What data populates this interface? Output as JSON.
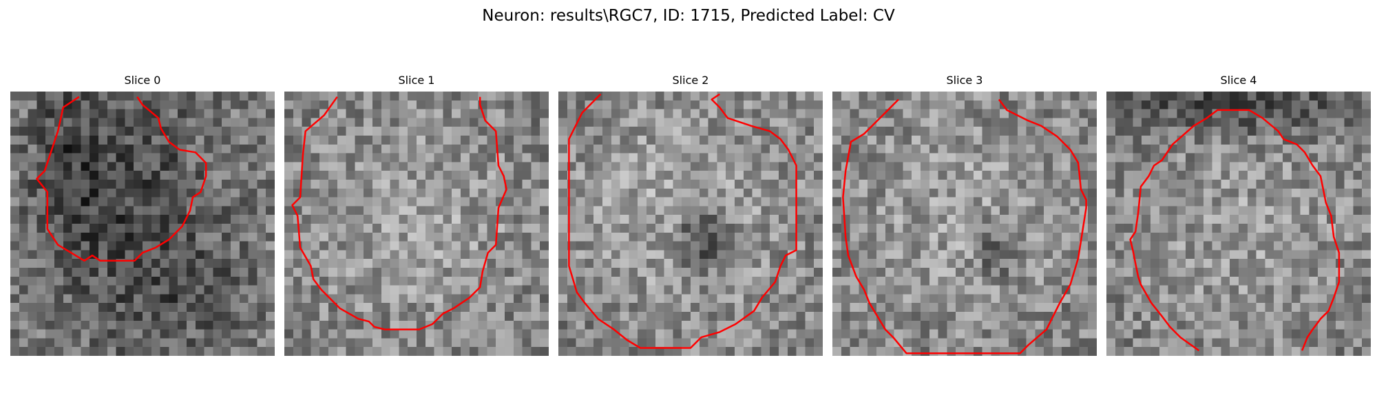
{
  "figure": {
    "title": "Neuron: results\\RGC7, ID: 1715, Predicted Label: CV",
    "contour_color": "#ff0000",
    "grid_size": 30
  },
  "slices": [
    {
      "label": "Slice 0",
      "seed": 11,
      "blobs": [
        [
          0.45,
          0.42,
          0.32,
          0.55,
          -1
        ],
        [
          0.2,
          0.3,
          0.12,
          0.4,
          -0.7
        ],
        [
          0.7,
          0.75,
          0.25,
          0.2,
          -0.5
        ]
      ],
      "contour": [
        [
          0.26,
          0.02
        ],
        [
          0.2,
          0.06
        ],
        [
          0.18,
          0.15
        ],
        [
          0.13,
          0.3
        ],
        [
          0.1,
          0.33
        ],
        [
          0.14,
          0.38
        ],
        [
          0.14,
          0.52
        ],
        [
          0.18,
          0.58
        ],
        [
          0.23,
          0.61
        ],
        [
          0.28,
          0.64
        ],
        [
          0.31,
          0.62
        ],
        [
          0.34,
          0.64
        ],
        [
          0.47,
          0.64
        ],
        [
          0.5,
          0.61
        ],
        [
          0.55,
          0.59
        ],
        [
          0.6,
          0.56
        ],
        [
          0.65,
          0.51
        ],
        [
          0.68,
          0.45
        ],
        [
          0.69,
          0.4
        ],
        [
          0.72,
          0.38
        ],
        [
          0.74,
          0.32
        ],
        [
          0.74,
          0.27
        ],
        [
          0.7,
          0.23
        ],
        [
          0.64,
          0.22
        ],
        [
          0.6,
          0.19
        ],
        [
          0.57,
          0.14
        ],
        [
          0.56,
          0.1
        ],
        [
          0.5,
          0.05
        ],
        [
          0.48,
          0.02
        ]
      ]
    },
    {
      "label": "Slice 1",
      "seed": 23,
      "blobs": [
        [
          0.5,
          0.5,
          0.42,
          0.42,
          0.6
        ]
      ],
      "contour": [
        [
          0.2,
          0.02
        ],
        [
          0.15,
          0.09
        ],
        [
          0.08,
          0.15
        ],
        [
          0.07,
          0.24
        ],
        [
          0.06,
          0.4
        ],
        [
          0.03,
          0.43
        ],
        [
          0.05,
          0.47
        ],
        [
          0.06,
          0.59
        ],
        [
          0.1,
          0.66
        ],
        [
          0.11,
          0.71
        ],
        [
          0.14,
          0.75
        ],
        [
          0.21,
          0.82
        ],
        [
          0.28,
          0.86
        ],
        [
          0.32,
          0.87
        ],
        [
          0.34,
          0.89
        ],
        [
          0.38,
          0.9
        ],
        [
          0.51,
          0.9
        ],
        [
          0.56,
          0.88
        ],
        [
          0.6,
          0.84
        ],
        [
          0.64,
          0.82
        ],
        [
          0.7,
          0.78
        ],
        [
          0.74,
          0.74
        ],
        [
          0.75,
          0.68
        ],
        [
          0.77,
          0.61
        ],
        [
          0.8,
          0.58
        ],
        [
          0.81,
          0.44
        ],
        [
          0.84,
          0.37
        ],
        [
          0.83,
          0.32
        ],
        [
          0.81,
          0.28
        ],
        [
          0.8,
          0.15
        ],
        [
          0.76,
          0.11
        ],
        [
          0.74,
          0.05
        ],
        [
          0.74,
          0.02
        ]
      ]
    },
    {
      "label": "Slice 2",
      "seed": 37,
      "blobs": [
        [
          0.47,
          0.45,
          0.44,
          0.43,
          0.7
        ],
        [
          0.55,
          0.55,
          0.1,
          0.15,
          -1.4
        ]
      ],
      "contour": [
        [
          0.16,
          0.01
        ],
        [
          0.09,
          0.08
        ],
        [
          0.06,
          0.14
        ],
        [
          0.04,
          0.18
        ],
        [
          0.04,
          0.66
        ],
        [
          0.07,
          0.76
        ],
        [
          0.1,
          0.8
        ],
        [
          0.15,
          0.86
        ],
        [
          0.21,
          0.9
        ],
        [
          0.26,
          0.94
        ],
        [
          0.31,
          0.97
        ],
        [
          0.5,
          0.97
        ],
        [
          0.54,
          0.93
        ],
        [
          0.61,
          0.91
        ],
        [
          0.67,
          0.88
        ],
        [
          0.74,
          0.83
        ],
        [
          0.77,
          0.78
        ],
        [
          0.82,
          0.72
        ],
        [
          0.84,
          0.66
        ],
        [
          0.86,
          0.62
        ],
        [
          0.9,
          0.6
        ],
        [
          0.9,
          0.28
        ],
        [
          0.87,
          0.22
        ],
        [
          0.84,
          0.18
        ],
        [
          0.8,
          0.15
        ],
        [
          0.73,
          0.13
        ],
        [
          0.64,
          0.1
        ],
        [
          0.61,
          0.06
        ],
        [
          0.58,
          0.03
        ],
        [
          0.61,
          0.01
        ]
      ]
    },
    {
      "label": "Slice 3",
      "seed": 41,
      "blobs": [
        [
          0.5,
          0.47,
          0.45,
          0.45,
          0.55
        ],
        [
          0.62,
          0.59,
          0.07,
          0.1,
          -1.1
        ]
      ],
      "contour": [
        [
          0.25,
          0.03
        ],
        [
          0.2,
          0.08
        ],
        [
          0.16,
          0.12
        ],
        [
          0.12,
          0.16
        ],
        [
          0.07,
          0.19
        ],
        [
          0.05,
          0.3
        ],
        [
          0.04,
          0.4
        ],
        [
          0.05,
          0.55
        ],
        [
          0.06,
          0.62
        ],
        [
          0.09,
          0.7
        ],
        [
          0.12,
          0.75
        ],
        [
          0.14,
          0.8
        ],
        [
          0.17,
          0.85
        ],
        [
          0.2,
          0.9
        ],
        [
          0.23,
          0.93
        ],
        [
          0.28,
          0.99
        ],
        [
          0.71,
          0.99
        ],
        [
          0.74,
          0.96
        ],
        [
          0.81,
          0.9
        ],
        [
          0.86,
          0.8
        ],
        [
          0.9,
          0.73
        ],
        [
          0.93,
          0.63
        ],
        [
          0.96,
          0.44
        ],
        [
          0.96,
          0.44
        ],
        [
          0.96,
          0.44
        ],
        [
          0.96,
          0.44
        ],
        [
          0.96,
          0.43
        ],
        [
          0.96,
          0.44
        ],
        [
          0.96,
          0.41
        ],
        [
          0.94,
          0.37
        ],
        [
          0.93,
          0.27
        ],
        [
          0.9,
          0.22
        ],
        [
          0.87,
          0.19
        ],
        [
          0.85,
          0.17
        ],
        [
          0.79,
          0.13
        ],
        [
          0.74,
          0.11
        ],
        [
          0.66,
          0.07
        ],
        [
          0.63,
          0.03
        ]
      ]
    },
    {
      "label": "Slice 4",
      "seed": 53,
      "blobs": [
        [
          0.52,
          0.53,
          0.45,
          0.43,
          0.5
        ],
        [
          0.5,
          0.05,
          0.5,
          0.12,
          -1
        ]
      ],
      "contour": [
        [
          0.35,
          0.98
        ],
        [
          0.28,
          0.93
        ],
        [
          0.24,
          0.89
        ],
        [
          0.21,
          0.85
        ],
        [
          0.17,
          0.8
        ],
        [
          0.13,
          0.73
        ],
        [
          0.12,
          0.7
        ],
        [
          0.11,
          0.65
        ],
        [
          0.1,
          0.6
        ],
        [
          0.09,
          0.56
        ],
        [
          0.11,
          0.53
        ],
        [
          0.12,
          0.46
        ],
        [
          0.13,
          0.36
        ],
        [
          0.16,
          0.32
        ],
        [
          0.18,
          0.28
        ],
        [
          0.21,
          0.26
        ],
        [
          0.25,
          0.2
        ],
        [
          0.33,
          0.13
        ],
        [
          0.38,
          0.1
        ],
        [
          0.42,
          0.07
        ],
        [
          0.54,
          0.07
        ],
        [
          0.59,
          0.1
        ],
        [
          0.65,
          0.15
        ],
        [
          0.67,
          0.18
        ],
        [
          0.72,
          0.2
        ],
        [
          0.75,
          0.23
        ],
        [
          0.78,
          0.28
        ],
        [
          0.81,
          0.32
        ],
        [
          0.82,
          0.37
        ],
        [
          0.83,
          0.42
        ],
        [
          0.85,
          0.47
        ],
        [
          0.86,
          0.55
        ],
        [
          0.88,
          0.61
        ],
        [
          0.88,
          0.72
        ],
        [
          0.86,
          0.78
        ],
        [
          0.84,
          0.83
        ],
        [
          0.81,
          0.86
        ],
        [
          0.78,
          0.9
        ],
        [
          0.76,
          0.93
        ],
        [
          0.74,
          0.98
        ]
      ]
    }
  ]
}
